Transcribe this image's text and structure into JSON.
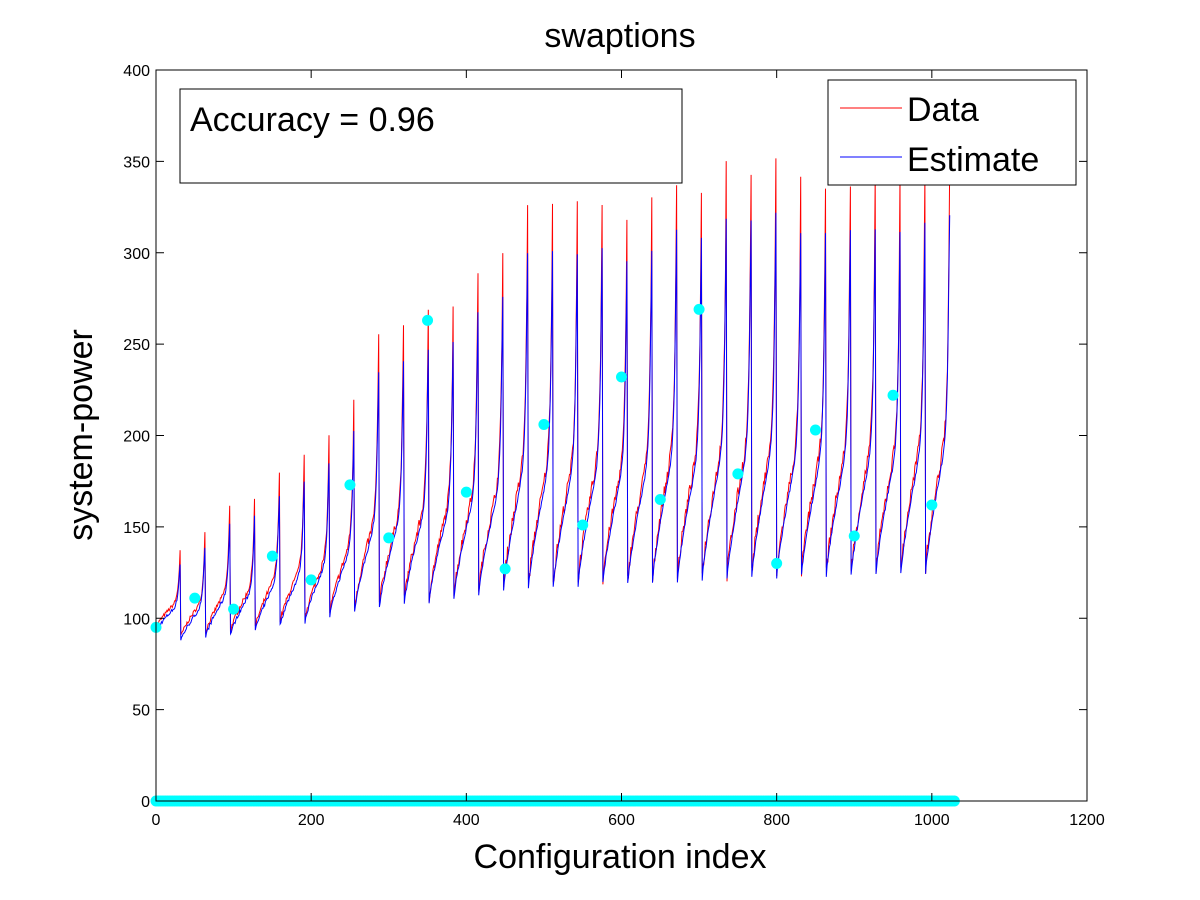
{
  "chart_data": {
    "type": "line",
    "title": "swaptions",
    "xlabel": "Configuration index",
    "ylabel": "system-power",
    "xlim": [
      0,
      1200
    ],
    "ylim": [
      0,
      400
    ],
    "xticks": [
      0,
      200,
      400,
      600,
      800,
      1000,
      1200
    ],
    "yticks": [
      0,
      50,
      100,
      150,
      200,
      250,
      300,
      350,
      400
    ],
    "grid": false,
    "legend_position": "top-right",
    "annotation": "Accuracy = 0.96",
    "colors": {
      "data": "#ff0000",
      "estimate": "#0000ff",
      "markers": "#00ffff"
    },
    "segment_length": 32,
    "segments": [
      {
        "start": 0,
        "low": 95,
        "high": 137
      },
      {
        "start": 32,
        "low": 90,
        "high": 147
      },
      {
        "start": 64,
        "low": 92,
        "high": 162
      },
      {
        "start": 96,
        "low": 93,
        "high": 166
      },
      {
        "start": 128,
        "low": 95,
        "high": 180
      },
      {
        "start": 160,
        "low": 98,
        "high": 188
      },
      {
        "start": 192,
        "low": 100,
        "high": 199
      },
      {
        "start": 224,
        "low": 103,
        "high": 218
      },
      {
        "start": 256,
        "low": 106,
        "high": 255
      },
      {
        "start": 288,
        "low": 108,
        "high": 262
      },
      {
        "start": 320,
        "low": 110,
        "high": 269
      },
      {
        "start": 352,
        "low": 111,
        "high": 273
      },
      {
        "start": 384,
        "low": 113,
        "high": 291
      },
      {
        "start": 416,
        "low": 115,
        "high": 300
      },
      {
        "start": 448,
        "low": 117,
        "high": 328
      },
      {
        "start": 480,
        "low": 118,
        "high": 327
      },
      {
        "start": 512,
        "low": 119,
        "high": 327
      },
      {
        "start": 544,
        "low": 120,
        "high": 329
      },
      {
        "start": 576,
        "low": 121,
        "high": 321
      },
      {
        "start": 608,
        "low": 121,
        "high": 327
      },
      {
        "start": 640,
        "low": 122,
        "high": 340
      },
      {
        "start": 672,
        "low": 122,
        "high": 336
      },
      {
        "start": 704,
        "low": 123,
        "high": 347
      },
      {
        "start": 736,
        "low": 123,
        "high": 346
      },
      {
        "start": 768,
        "low": 124,
        "high": 350
      },
      {
        "start": 800,
        "low": 124,
        "high": 338
      },
      {
        "start": 832,
        "low": 125,
        "high": 338
      },
      {
        "start": 864,
        "low": 125,
        "high": 340
      },
      {
        "start": 896,
        "low": 125,
        "high": 340
      },
      {
        "start": 928,
        "low": 126,
        "high": 338
      },
      {
        "start": 960,
        "low": 126,
        "high": 345
      },
      {
        "start": 992,
        "low": 127,
        "high": 350
      }
    ],
    "series": [
      {
        "name": "Data"
      },
      {
        "name": "Estimate"
      }
    ],
    "sample_markers": [
      {
        "x": 0,
        "y": 95
      },
      {
        "x": 50,
        "y": 111
      },
      {
        "x": 100,
        "y": 105
      },
      {
        "x": 150,
        "y": 134
      },
      {
        "x": 200,
        "y": 121
      },
      {
        "x": 250,
        "y": 173
      },
      {
        "x": 300,
        "y": 144
      },
      {
        "x": 350,
        "y": 263
      },
      {
        "x": 400,
        "y": 169
      },
      {
        "x": 450,
        "y": 127
      },
      {
        "x": 500,
        "y": 206
      },
      {
        "x": 550,
        "y": 151
      },
      {
        "x": 600,
        "y": 232
      },
      {
        "x": 650,
        "y": 165
      },
      {
        "x": 700,
        "y": 269
      },
      {
        "x": 750,
        "y": 179
      },
      {
        "x": 800,
        "y": 130
      },
      {
        "x": 850,
        "y": 203
      },
      {
        "x": 900,
        "y": 145
      },
      {
        "x": 950,
        "y": 222
      },
      {
        "x": 1000,
        "y": 162
      }
    ],
    "zero_markers": {
      "x_start": 0,
      "x_end": 1030,
      "step": 3,
      "y": 0
    }
  }
}
